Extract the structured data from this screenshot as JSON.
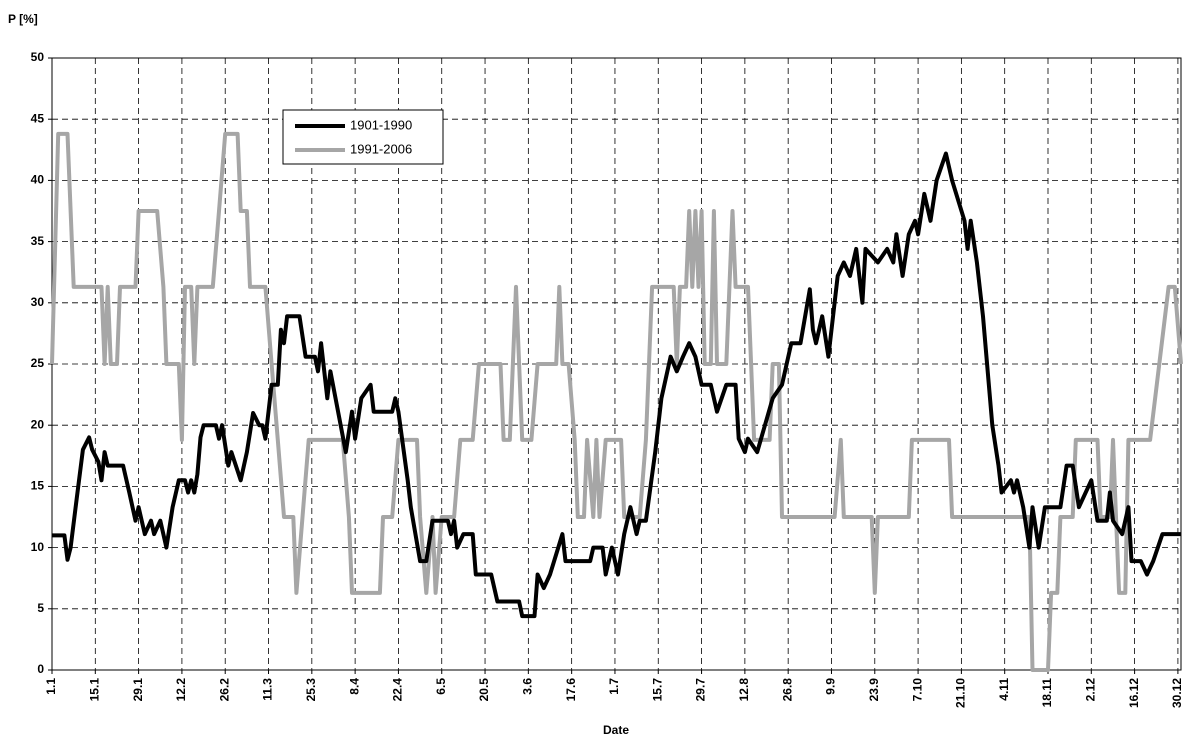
{
  "chart_data": {
    "type": "line",
    "ylabel": "P [%]",
    "xlabel": "Date",
    "xlim": [
      1,
      366
    ],
    "ylim": [
      0,
      50
    ],
    "yticks": [
      0,
      5,
      10,
      15,
      20,
      25,
      30,
      35,
      40,
      45,
      50
    ],
    "xticks": [
      {
        "value": 1,
        "label": "1.1"
      },
      {
        "value": 15,
        "label": "15.1"
      },
      {
        "value": 29,
        "label": "29.1"
      },
      {
        "value": 43,
        "label": "12.2"
      },
      {
        "value": 57,
        "label": "26.2"
      },
      {
        "value": 71,
        "label": "11.3"
      },
      {
        "value": 85,
        "label": "25.3"
      },
      {
        "value": 99,
        "label": "8.4"
      },
      {
        "value": 113,
        "label": "22.4"
      },
      {
        "value": 127,
        "label": "6.5"
      },
      {
        "value": 141,
        "label": "20.5"
      },
      {
        "value": 155,
        "label": "3.6"
      },
      {
        "value": 169,
        "label": "17.6"
      },
      {
        "value": 183,
        "label": "1.7"
      },
      {
        "value": 197,
        "label": "15.7"
      },
      {
        "value": 211,
        "label": "29.7"
      },
      {
        "value": 225,
        "label": "12.8"
      },
      {
        "value": 239,
        "label": "26.8"
      },
      {
        "value": 253,
        "label": "9.9"
      },
      {
        "value": 267,
        "label": "23.9"
      },
      {
        "value": 281,
        "label": "7.10"
      },
      {
        "value": 295,
        "label": "21.10"
      },
      {
        "value": 309,
        "label": "4.11"
      },
      {
        "value": 323,
        "label": "18.11"
      },
      {
        "value": 337,
        "label": "2.12"
      },
      {
        "value": 351,
        "label": "16.12"
      },
      {
        "value": 365,
        "label": "30.12"
      }
    ],
    "grid": true,
    "series": [
      {
        "name": "1901-1990",
        "color": "#000000",
        "x": [
          1,
          5,
          6,
          7,
          9,
          11,
          13,
          14,
          16,
          17,
          18,
          19,
          24,
          26,
          28,
          29,
          31,
          33,
          34,
          36,
          38,
          40,
          42,
          44,
          45,
          46,
          47,
          48,
          49,
          50,
          54,
          55,
          56,
          58,
          59,
          62,
          64,
          66,
          68,
          69,
          70,
          72,
          74,
          75,
          76,
          77,
          81,
          83,
          86,
          87,
          88,
          90,
          91,
          96,
          98,
          99,
          101,
          104,
          105,
          111,
          112,
          113,
          116,
          117,
          120,
          122,
          124,
          129,
          130,
          131,
          132,
          134,
          137,
          138,
          143,
          145,
          152,
          153,
          157,
          158,
          160,
          162,
          166,
          167,
          175,
          176,
          179,
          180,
          182,
          184,
          186,
          188,
          190,
          191,
          193,
          196,
          198,
          201,
          203,
          205,
          207,
          209,
          211,
          214,
          216,
          219,
          222,
          223,
          225,
          226,
          229,
          234,
          237,
          240,
          243,
          246,
          247,
          248,
          250,
          252,
          255,
          257,
          259,
          261,
          263,
          264,
          268,
          271,
          273,
          274,
          276,
          278,
          280,
          281,
          283,
          285,
          287,
          290,
          292,
          296,
          297,
          298,
          300,
          302,
          305,
          307,
          308,
          311,
          312,
          313,
          315,
          317,
          318,
          320,
          322,
          327,
          329,
          331,
          333,
          337,
          339,
          342,
          343,
          344,
          347,
          349,
          350,
          353,
          355,
          357,
          360,
          366
        ],
        "values": [
          11,
          11,
          9,
          10,
          14,
          18,
          19,
          18,
          17,
          15.5,
          17.8,
          16.7,
          16.7,
          14.5,
          12.2,
          13.3,
          11.1,
          12.2,
          11.1,
          12.2,
          10,
          13.3,
          15.5,
          15.5,
          14.5,
          15.5,
          14.5,
          16,
          19,
          20,
          20,
          18.9,
          20,
          16.7,
          17.8,
          15.5,
          17.8,
          21,
          20,
          20,
          18.9,
          23.3,
          23.3,
          27.8,
          26.7,
          28.9,
          28.9,
          25.6,
          25.6,
          24.4,
          26.7,
          22.2,
          24.4,
          17.8,
          21.1,
          18.9,
          22.2,
          23.3,
          21.1,
          21.1,
          22.2,
          21.1,
          15.5,
          13.3,
          8.9,
          8.9,
          12.2,
          12.2,
          11.1,
          12.2,
          10,
          11.1,
          11.1,
          7.8,
          7.8,
          5.6,
          5.6,
          4.4,
          4.4,
          7.8,
          6.7,
          7.8,
          11.1,
          8.9,
          8.9,
          10,
          10,
          7.8,
          10,
          7.8,
          11.1,
          13.3,
          11.1,
          12.2,
          12.2,
          17.8,
          22.2,
          25.6,
          24.4,
          25.6,
          26.7,
          25.6,
          23.3,
          23.3,
          21.1,
          23.3,
          23.3,
          18.9,
          17.8,
          18.9,
          17.8,
          22.2,
          23.3,
          26.7,
          26.7,
          31.1,
          27.8,
          26.7,
          28.9,
          25.6,
          32.2,
          33.3,
          32.2,
          34.4,
          30,
          34.4,
          33.3,
          34.4,
          33.3,
          35.6,
          32.2,
          35.6,
          36.7,
          35.6,
          38.9,
          36.7,
          40,
          42.2,
          40,
          36.7,
          34.4,
          36.7,
          33.3,
          28.9,
          20,
          16.7,
          14.5,
          15.5,
          14.5,
          15.5,
          13.3,
          10,
          13.3,
          10,
          13.3,
          13.3,
          16.7,
          16.7,
          13.3,
          15.5,
          12.2,
          12.2,
          14.5,
          12.2,
          11.1,
          13.3,
          8.9,
          8.9,
          7.8,
          8.9,
          11.1,
          11.1
        ]
      },
      {
        "name": "1991-2006",
        "color": "#a6a6a6",
        "x": [
          1,
          3,
          6,
          8,
          17,
          18,
          19,
          20,
          22,
          23,
          28,
          29,
          35,
          37,
          38,
          42,
          43,
          44,
          46,
          47,
          48,
          53,
          55,
          57,
          61,
          62,
          64,
          65,
          70,
          72,
          74,
          76,
          79,
          80,
          82,
          84,
          95,
          97,
          98,
          107,
          108,
          111,
          113,
          119,
          120,
          122,
          124,
          125,
          127,
          131,
          133,
          137,
          139,
          146,
          147,
          149,
          151,
          153,
          156,
          158,
          164,
          165,
          166,
          168,
          170,
          171,
          173,
          174,
          176,
          177,
          178,
          180,
          185,
          186,
          191,
          193,
          195,
          202,
          203,
          204,
          206,
          207,
          208,
          209,
          210,
          211,
          212,
          214,
          215,
          216,
          219,
          221,
          222,
          226,
          227,
          228,
          233,
          234,
          236,
          237,
          254,
          256,
          257,
          266,
          267,
          268,
          278,
          279,
          291,
          292,
          317,
          318,
          323,
          324,
          326,
          327,
          331,
          332,
          339,
          340,
          343,
          344,
          345,
          346,
          348,
          349,
          356,
          362,
          364,
          366
        ],
        "values": [
          25,
          43.8,
          43.8,
          31.3,
          31.3,
          25,
          31.3,
          25,
          25,
          31.3,
          31.3,
          37.5,
          37.5,
          31.3,
          25,
          25,
          18.8,
          31.3,
          31.3,
          25,
          31.3,
          31.3,
          37.5,
          43.8,
          43.8,
          37.5,
          37.5,
          31.3,
          31.3,
          25,
          18.8,
          12.5,
          12.5,
          6.3,
          12.5,
          18.8,
          18.8,
          12.5,
          6.3,
          6.3,
          12.5,
          12.5,
          18.8,
          18.8,
          12.5,
          6.3,
          12.5,
          6.3,
          12.5,
          12.5,
          18.8,
          18.8,
          25,
          25,
          18.8,
          18.8,
          31.3,
          18.8,
          18.8,
          25,
          25,
          31.3,
          25,
          25,
          18.8,
          12.5,
          12.5,
          18.8,
          12.5,
          18.8,
          12.5,
          18.8,
          18.8,
          12.5,
          12.5,
          18.8,
          31.3,
          31.3,
          25,
          31.3,
          31.3,
          37.5,
          31.3,
          37.5,
          31.3,
          37.5,
          25,
          25,
          37.5,
          25,
          25,
          37.5,
          31.3,
          31.3,
          25,
          18.8,
          18.8,
          25,
          25,
          12.5,
          12.5,
          18.8,
          12.5,
          12.5,
          6.3,
          12.5,
          12.5,
          18.8,
          18.8,
          12.5,
          12.5,
          0,
          0,
          6.3,
          6.3,
          12.5,
          12.5,
          18.8,
          18.8,
          12.5,
          12.5,
          18.8,
          12.5,
          6.3,
          6.3,
          18.8,
          18.8,
          31.3,
          31.3,
          25
        ]
      }
    ]
  }
}
